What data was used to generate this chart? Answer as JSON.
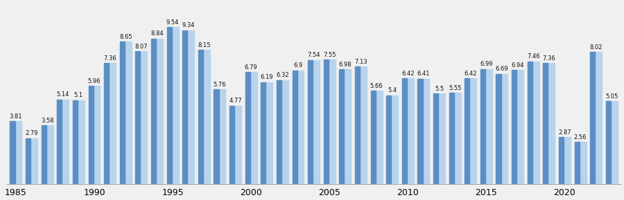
{
  "years": [
    1985,
    1986,
    1987,
    1988,
    1989,
    1990,
    1991,
    1992,
    1993,
    1994,
    1995,
    1996,
    1997,
    1998,
    1999,
    2000,
    2001,
    2002,
    2003,
    2004,
    2005,
    2006,
    2007,
    2008,
    2009,
    2010,
    2011,
    2012,
    2013,
    2014,
    2015,
    2016,
    2017,
    2018,
    2019,
    2020,
    2021,
    2022,
    2023
  ],
  "values": [
    3.81,
    2.79,
    3.58,
    5.14,
    5.1,
    5.96,
    7.36,
    8.65,
    8.07,
    8.84,
    9.54,
    9.34,
    8.15,
    5.76,
    4.77,
    6.79,
    6.19,
    6.32,
    6.9,
    7.54,
    7.55,
    6.98,
    7.13,
    5.66,
    5.4,
    6.42,
    6.41,
    5.5,
    5.55,
    6.42,
    6.99,
    6.69,
    6.94,
    7.46,
    7.36,
    2.87,
    2.56,
    8.02,
    5.05
  ],
  "bar_color_dark": "#5b8ec4",
  "bar_color_light": "#b8d4ed",
  "background_color": "#f0f0f0",
  "label_fontsize": 6.0,
  "tick_fontsize": 9,
  "ylim": [
    0,
    11.0
  ],
  "label_color": "#111111",
  "x_tick_years": [
    1985,
    1990,
    1995,
    2000,
    2005,
    2010,
    2015,
    2020
  ]
}
